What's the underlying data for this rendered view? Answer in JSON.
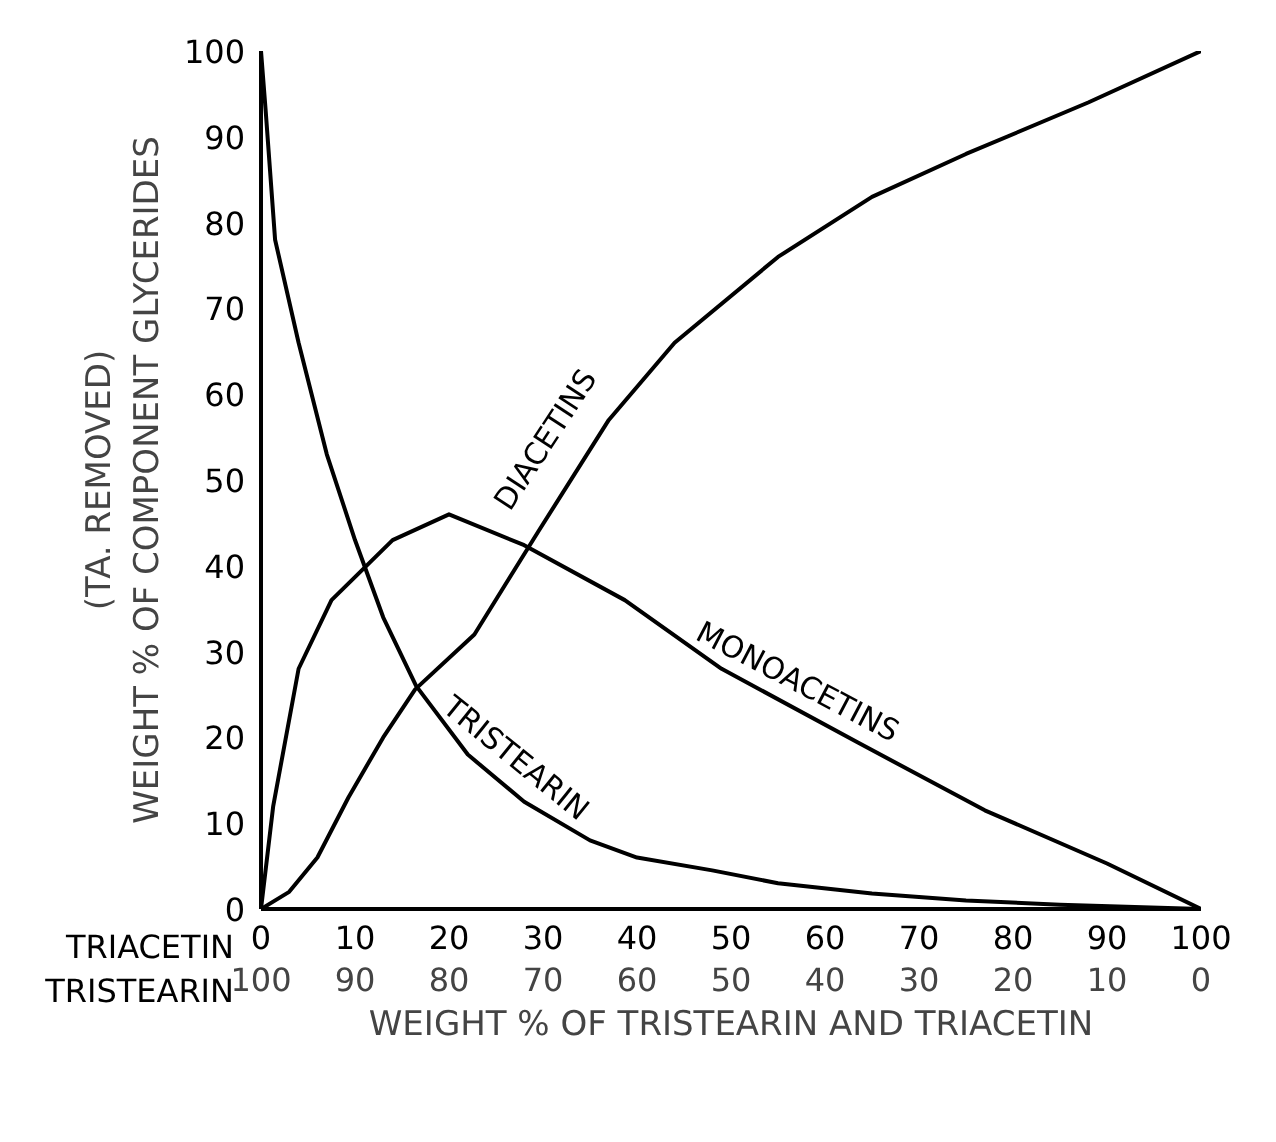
{
  "chart_data": {
    "type": "line",
    "xlabel": "WEIGHT % OF TRISTEARIN AND TRIACETIN",
    "ylabel": "(TA. REMOVED)\nWEIGHT % OF COMPONENT GLYCERIDES",
    "xlim": [
      0,
      100
    ],
    "xticks": [
      0,
      10,
      20,
      30,
      40,
      50,
      60,
      70,
      80,
      90,
      100
    ],
    "x2lim": [
      100,
      0
    ],
    "x2ticks": [
      100,
      90,
      80,
      70,
      60,
      50,
      40,
      30,
      20,
      10,
      0
    ],
    "ylim": [
      0,
      100
    ],
    "yticks": [
      0,
      10,
      20,
      30,
      40,
      50,
      60,
      70,
      80,
      90,
      100
    ],
    "annotations": [
      "TRIACETIN",
      "TRISTEARIN"
    ],
    "grid": false,
    "legend": false,
    "marker": "none",
    "line_style": "solid",
    "series": [
      {
        "name": "DIACETINS",
        "color": "#000000",
        "x": [
          0,
          3,
          6,
          9.3,
          13,
          16.4,
          22.7,
          29.5,
          37,
          44,
          55,
          65,
          75,
          88,
          100
        ],
        "values": [
          0,
          2,
          6,
          13,
          20,
          25.6,
          32,
          44,
          57,
          66,
          76,
          83,
          88,
          94,
          100
        ]
      },
      {
        "name": "MONOACETINS",
        "color": "#000000",
        "x": [
          0,
          1.3,
          4,
          7.5,
          14,
          20,
          28,
          38.7,
          49,
          63.5,
          77,
          90,
          100
        ],
        "values": [
          0,
          12,
          28,
          36,
          43,
          46,
          42.4,
          36,
          28,
          19.4,
          11.5,
          5.3,
          0
        ]
      },
      {
        "name": "TRISTEARIN",
        "color": "#000000",
        "x": [
          0,
          0.5,
          1.5,
          4,
          7,
          10,
          13,
          16.5,
          22,
          28,
          35,
          40,
          48,
          55,
          65,
          75,
          85,
          100
        ],
        "values": [
          100,
          93,
          78,
          66,
          53,
          43,
          34,
          26,
          18,
          12.5,
          8,
          6,
          4.5,
          3,
          1.8,
          1,
          0.5,
          0
        ]
      }
    ]
  }
}
